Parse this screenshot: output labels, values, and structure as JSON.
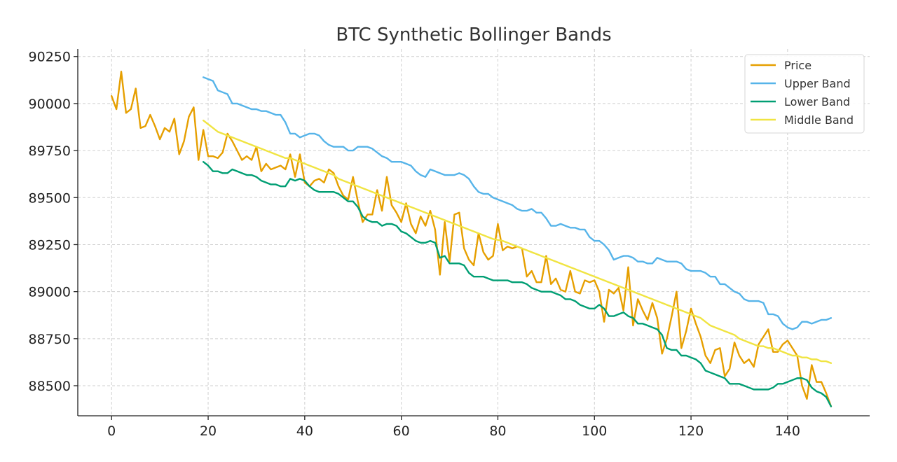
{
  "chart_data": {
    "type": "line",
    "title": "BTC Synthetic Bollinger Bands",
    "xlabel": "",
    "ylabel": "",
    "xlim": [
      -7,
      157
    ],
    "ylim": [
      88340,
      90290
    ],
    "x_ticks": [
      0,
      20,
      40,
      60,
      80,
      100,
      120,
      140
    ],
    "y_ticks": [
      88500,
      88750,
      89000,
      89250,
      89500,
      89750,
      90000,
      90250
    ],
    "grid": true,
    "legend_position": "top-right",
    "series": [
      {
        "name": "Price",
        "color": "#E69F00",
        "x_start": 0,
        "values": [
          90040,
          89970,
          90170,
          89950,
          89970,
          90080,
          89870,
          89880,
          89940,
          89880,
          89810,
          89870,
          89850,
          89920,
          89730,
          89800,
          89930,
          89980,
          89700,
          89860,
          89720,
          89720,
          89710,
          89740,
          89840,
          89800,
          89750,
          89700,
          89720,
          89700,
          89770,
          89640,
          89680,
          89650,
          89660,
          89670,
          89650,
          89730,
          89610,
          89730,
          89580,
          89560,
          89590,
          89600,
          89580,
          89650,
          89630,
          89560,
          89510,
          89490,
          89610,
          89480,
          89370,
          89410,
          89410,
          89540,
          89430,
          89610,
          89460,
          89420,
          89370,
          89470,
          89360,
          89310,
          89400,
          89350,
          89430,
          89330,
          89090,
          89370,
          89160,
          89410,
          89420,
          89230,
          89170,
          89140,
          89310,
          89210,
          89170,
          89190,
          89360,
          89220,
          89240,
          89230,
          89240,
          89230,
          89080,
          89110,
          89050,
          89050,
          89190,
          89040,
          89070,
          89010,
          89000,
          89110,
          89000,
          88990,
          89060,
          89050,
          89060,
          89000,
          88840,
          89010,
          88990,
          89020,
          88900,
          89130,
          88820,
          88960,
          88900,
          88850,
          88940,
          88860,
          88670,
          88750,
          88870,
          89000,
          88700,
          88790,
          88910,
          88830,
          88760,
          88660,
          88620,
          88690,
          88700,
          88550,
          88590,
          88730,
          88660,
          88620,
          88640,
          88600,
          88720,
          88760,
          88800,
          88680,
          88680,
          88720,
          88740,
          88700,
          88660,
          88500,
          88430,
          88610,
          88520,
          88520,
          88460,
          88390
        ]
      },
      {
        "name": "Upper Band",
        "color": "#56B4E9",
        "x_start": 19,
        "values": [
          90140,
          90130,
          90120,
          90070,
          90060,
          90050,
          90000,
          90000,
          89990,
          89980,
          89970,
          89970,
          89960,
          89960,
          89950,
          89940,
          89940,
          89900,
          89840,
          89840,
          89820,
          89830,
          89840,
          89840,
          89830,
          89800,
          89780,
          89770,
          89770,
          89770,
          89750,
          89750,
          89770,
          89770,
          89770,
          89760,
          89740,
          89720,
          89710,
          89690,
          89690,
          89690,
          89680,
          89670,
          89640,
          89620,
          89610,
          89650,
          89640,
          89630,
          89620,
          89620,
          89620,
          89630,
          89620,
          89600,
          89560,
          89530,
          89520,
          89520,
          89500,
          89490,
          89480,
          89470,
          89460,
          89440,
          89430,
          89430,
          89440,
          89420,
          89420,
          89390,
          89350,
          89350,
          89360,
          89350,
          89340,
          89340,
          89330,
          89330,
          89290,
          89270,
          89270,
          89250,
          89220,
          89170,
          89180,
          89190,
          89190,
          89180,
          89160,
          89160,
          89150,
          89150,
          89180,
          89170,
          89160,
          89160,
          89160,
          89150,
          89120,
          89110,
          89110,
          89110,
          89100,
          89080,
          89080,
          89040,
          89040,
          89020,
          89000,
          88990,
          88960,
          88950,
          88950,
          88950,
          88940,
          88880,
          88880,
          88870,
          88830,
          88810,
          88800,
          88810,
          88840,
          88840,
          88830,
          88840,
          88850,
          88850,
          88860
        ]
      },
      {
        "name": "Lower Band",
        "color": "#009E73",
        "x_start": 19,
        "values": [
          89690,
          89670,
          89640,
          89640,
          89630,
          89630,
          89650,
          89640,
          89630,
          89620,
          89620,
          89610,
          89590,
          89580,
          89570,
          89570,
          89560,
          89560,
          89600,
          89590,
          89600,
          89590,
          89560,
          89540,
          89530,
          89530,
          89530,
          89530,
          89520,
          89500,
          89480,
          89480,
          89450,
          89400,
          89380,
          89370,
          89370,
          89350,
          89360,
          89360,
          89350,
          89320,
          89310,
          89290,
          89270,
          89260,
          89260,
          89270,
          89260,
          89180,
          89190,
          89150,
          89150,
          89150,
          89140,
          89100,
          89080,
          89080,
          89080,
          89070,
          89060,
          89060,
          89060,
          89060,
          89050,
          89050,
          89050,
          89040,
          89020,
          89010,
          89000,
          89000,
          89000,
          88990,
          88980,
          88960,
          88960,
          88950,
          88930,
          88920,
          88910,
          88910,
          88930,
          88910,
          88870,
          88870,
          88880,
          88890,
          88870,
          88860,
          88830,
          88830,
          88820,
          88810,
          88800,
          88770,
          88700,
          88690,
          88690,
          88660,
          88660,
          88650,
          88640,
          88620,
          88580,
          88570,
          88560,
          88550,
          88540,
          88510,
          88510,
          88510,
          88500,
          88490,
          88480,
          88480,
          88480,
          88480,
          88490,
          88510,
          88510,
          88520,
          88530,
          88540,
          88540,
          88530,
          88490,
          88470,
          88460,
          88440,
          88390
        ]
      },
      {
        "name": "Middle Band",
        "color": "#F0E442",
        "x_start": 19,
        "values": [
          89910,
          89890,
          89870,
          89850,
          89840,
          89830,
          89820,
          89810,
          89800,
          89790,
          89780,
          89770,
          89760,
          89750,
          89740,
          89730,
          89720,
          89710,
          89710,
          89700,
          89690,
          89680,
          89670,
          89660,
          89650,
          89640,
          89630,
          89620,
          89600,
          89590,
          89580,
          89570,
          89560,
          89550,
          89540,
          89530,
          89520,
          89510,
          89500,
          89490,
          89480,
          89470,
          89460,
          89450,
          89440,
          89430,
          89420,
          89410,
          89400,
          89390,
          89380,
          89370,
          89360,
          89350,
          89340,
          89330,
          89320,
          89310,
          89300,
          89290,
          89280,
          89275,
          89270,
          89260,
          89250,
          89240,
          89230,
          89220,
          89210,
          89200,
          89190,
          89180,
          89170,
          89160,
          89150,
          89140,
          89130,
          89120,
          89110,
          89100,
          89090,
          89080,
          89070,
          89060,
          89050,
          89040,
          89030,
          89020,
          89010,
          89000,
          88990,
          88980,
          88970,
          88960,
          88950,
          88940,
          88930,
          88920,
          88910,
          88900,
          88890,
          88880,
          88870,
          88860,
          88840,
          88820,
          88810,
          88800,
          88790,
          88780,
          88770,
          88750,
          88740,
          88730,
          88720,
          88710,
          88710,
          88700,
          88700,
          88690,
          88680,
          88670,
          88660,
          88660,
          88650,
          88650,
          88640,
          88640,
          88630,
          88630,
          88620
        ]
      }
    ]
  }
}
